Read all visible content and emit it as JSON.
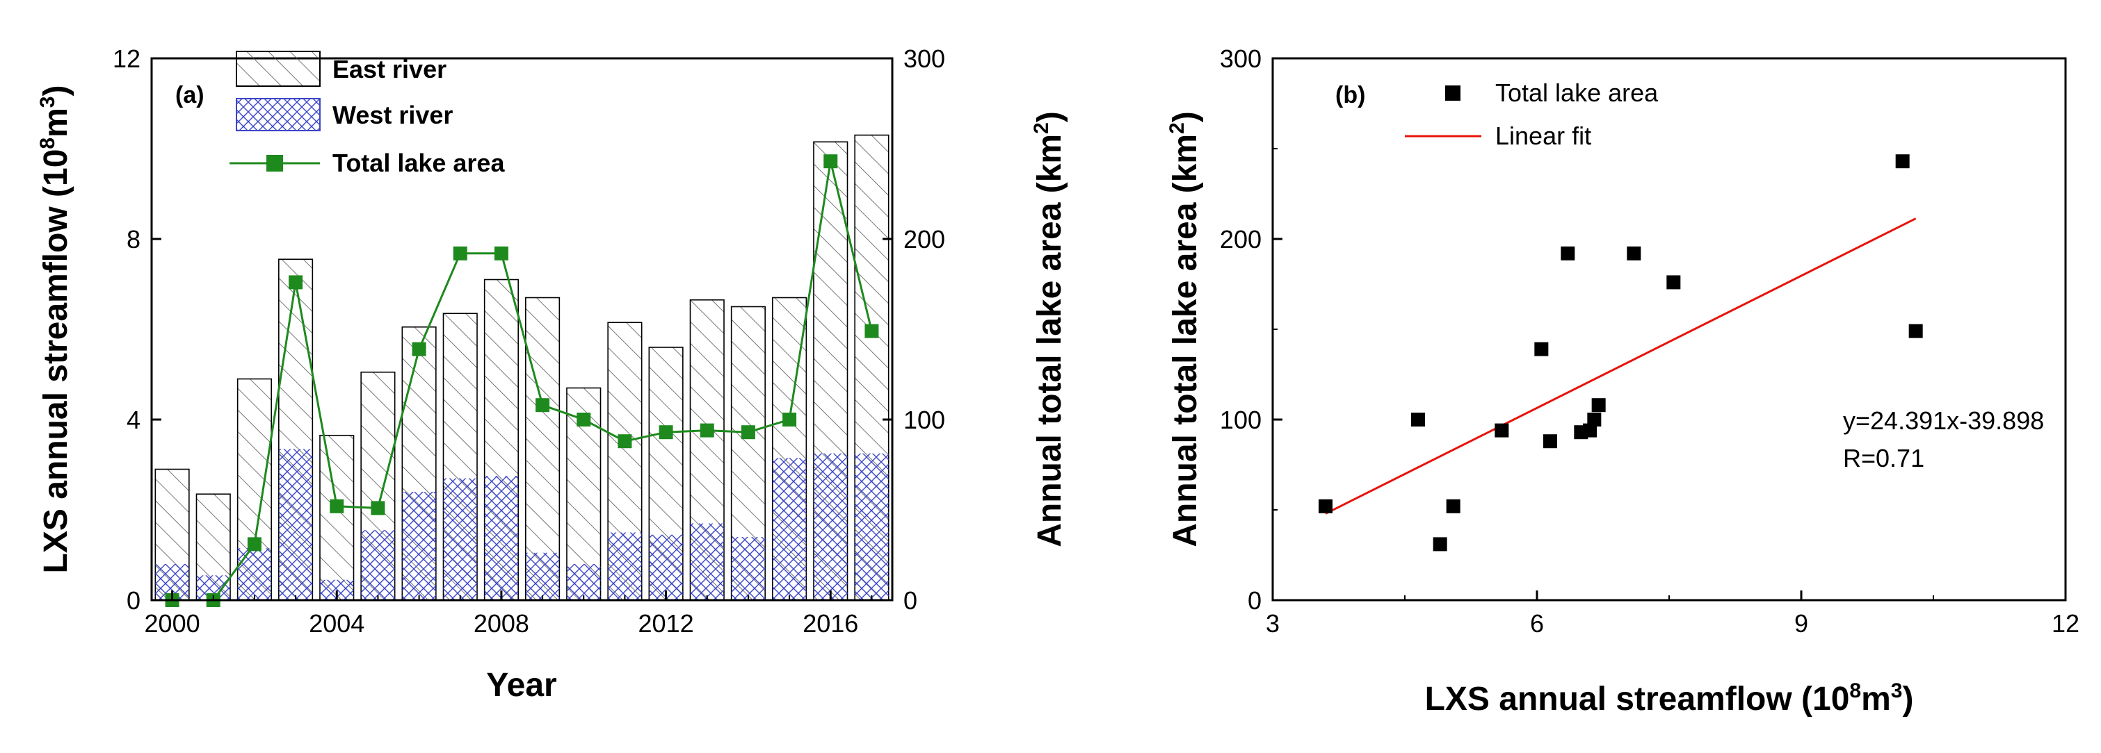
{
  "chart_data": [
    {
      "type": "bar",
      "panel_label": "(a)",
      "xlabel": "Year",
      "ylabel_left_prefix": "LXS annual streamflow (10",
      "ylabel_left_sup1": "8",
      "ylabel_left_mid": "m",
      "ylabel_left_sup2": "3",
      "ylabel_left_suffix": ")",
      "ylabel_right_prefix": "Annual total lake area (km",
      "ylabel_right_sup": "2",
      "ylabel_right_suffix": ")",
      "xlim": [
        1999.5,
        2017.5
      ],
      "xticks": [
        "2000",
        "2004",
        "2008",
        "2012",
        "2016"
      ],
      "ylim_left": [
        0,
        12
      ],
      "yticks_left": [
        "0",
        "4",
        "8",
        "12"
      ],
      "ylim_right": [
        0,
        300
      ],
      "yticks_right": [
        "0",
        "100",
        "200",
        "300"
      ],
      "categories": [
        "2000",
        "2001",
        "2002",
        "2003",
        "2004",
        "2005",
        "2006",
        "2007",
        "2008",
        "2009",
        "2010",
        "2011",
        "2012",
        "2013",
        "2014",
        "2015",
        "2016",
        "2017"
      ],
      "series": [
        {
          "name": "East river",
          "axis": "left",
          "style": "hatched-bar",
          "values": [
            2.9,
            2.35,
            4.9,
            7.55,
            3.65,
            5.05,
            6.05,
            6.35,
            7.1,
            6.7,
            4.7,
            6.15,
            5.6,
            6.65,
            6.5,
            6.7,
            10.15,
            10.3
          ]
        },
        {
          "name": "West river",
          "axis": "left",
          "style": "crosshatched-bar",
          "values": [
            0.8,
            0.55,
            1.15,
            3.35,
            0.45,
            1.55,
            2.4,
            2.7,
            2.75,
            1.05,
            0.8,
            1.5,
            1.45,
            1.7,
            1.4,
            3.15,
            3.25,
            3.25
          ]
        },
        {
          "name": "Total lake area",
          "axis": "right",
          "style": "line-square",
          "color": "#1e8a1e",
          "values": [
            0,
            0,
            31,
            176,
            52,
            51,
            139,
            192,
            192,
            108,
            100,
            88,
            93,
            94,
            93,
            100,
            243,
            149
          ]
        }
      ]
    },
    {
      "type": "scatter",
      "panel_label": "(b)",
      "xlabel_prefix": "LXS annual streamflow (10",
      "xlabel_sup1": "8",
      "xlabel_mid": "m",
      "xlabel_sup2": "3",
      "xlabel_suffix": ")",
      "ylabel_prefix": "Annual total lake area (km",
      "ylabel_sup": "2",
      "ylabel_suffix": ")",
      "xlim": [
        3,
        12
      ],
      "xticks": [
        "3",
        "6",
        "9",
        "12"
      ],
      "ylim": [
        0,
        300
      ],
      "yticks": [
        "0",
        "100",
        "200",
        "300"
      ],
      "series": [
        {
          "name": "Total lake area",
          "style": "square-marker",
          "points": [
            [
              3.6,
              52
            ],
            [
              4.65,
              100
            ],
            [
              4.9,
              31
            ],
            [
              5.05,
              52
            ],
            [
              5.6,
              94
            ],
            [
              6.05,
              139
            ],
            [
              6.15,
              88
            ],
            [
              6.35,
              192
            ],
            [
              6.5,
              93
            ],
            [
              6.6,
              94
            ],
            [
              6.65,
              100
            ],
            [
              6.7,
              108
            ],
            [
              7.1,
              192
            ],
            [
              7.55,
              176
            ],
            [
              10.15,
              243
            ],
            [
              10.3,
              149
            ]
          ]
        },
        {
          "name": "Linear fit",
          "style": "line",
          "color": "#e8140a",
          "slope": 24.391,
          "intercept": -39.898,
          "x_range": [
            3.6,
            10.3
          ]
        }
      ],
      "annotation_equation": "y=24.391x-39.898",
      "annotation_r": "R=0.71"
    }
  ]
}
